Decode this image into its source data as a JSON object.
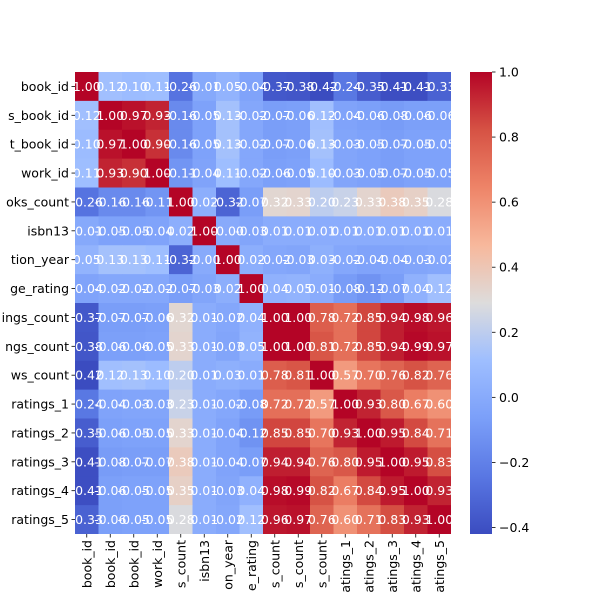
{
  "chart_data": {
    "type": "heatmap",
    "title": "",
    "xlabel": "",
    "ylabel": "",
    "row_labels": [
      "book_id",
      "s_book_id",
      "t_book_id",
      "work_id",
      "oks_count",
      "isbn13",
      "tion_year",
      "ge_rating",
      "ings_count",
      "ngs_count",
      "ws_count",
      "ratings_1",
      "ratings_2",
      "ratings_3",
      "ratings_4",
      "ratings_5"
    ],
    "col_labels": [
      "book_id",
      "book_id",
      "book_id",
      "work_id",
      "s_count",
      "isbn13",
      "on_year",
      "e_rating",
      "s_count",
      "s_count",
      "s_count",
      "atings_1",
      "atings_2",
      "atings_3",
      "atings_4",
      "atings_5"
    ],
    "values": [
      [
        1.0,
        0.12,
        0.1,
        0.11,
        -0.26,
        -0.01,
        0.05,
        -0.04,
        -0.37,
        -0.38,
        -0.42,
        -0.24,
        -0.35,
        -0.41,
        -0.41,
        -0.33
      ],
      [
        0.12,
        1.0,
        0.97,
        0.93,
        -0.16,
        -0.05,
        0.13,
        -0.02,
        -0.07,
        -0.06,
        0.12,
        -0.04,
        -0.06,
        -0.08,
        -0.06,
        -0.06
      ],
      [
        0.1,
        0.97,
        1.0,
        0.9,
        -0.16,
        -0.05,
        0.13,
        -0.02,
        -0.07,
        -0.06,
        0.13,
        -0.03,
        -0.05,
        -0.07,
        -0.05,
        -0.05
      ],
      [
        0.11,
        0.93,
        0.9,
        1.0,
        -0.11,
        -0.04,
        0.11,
        -0.02,
        -0.06,
        -0.05,
        0.1,
        -0.03,
        -0.05,
        -0.07,
        -0.05,
        -0.05
      ],
      [
        -0.26,
        -0.16,
        -0.16,
        -0.11,
        1.0,
        0.02,
        -0.32,
        -0.07,
        0.32,
        0.33,
        0.2,
        0.23,
        0.33,
        0.38,
        0.35,
        0.28
      ],
      [
        -0.01,
        -0.05,
        -0.05,
        -0.04,
        0.02,
        1.0,
        -0.0,
        -0.03,
        0.01,
        0.01,
        0.01,
        0.01,
        0.01,
        0.01,
        0.01,
        0.01
      ],
      [
        0.05,
        0.13,
        0.13,
        0.11,
        -0.32,
        -0.0,
        1.0,
        0.02,
        -0.02,
        -0.03,
        0.03,
        -0.02,
        -0.04,
        -0.04,
        -0.03,
        -0.02
      ],
      [
        -0.04,
        -0.02,
        -0.02,
        -0.02,
        -0.07,
        -0.03,
        0.02,
        1.0,
        0.04,
        0.05,
        0.01,
        -0.08,
        -0.12,
        -0.07,
        0.04,
        0.12
      ],
      [
        -0.37,
        -0.07,
        -0.07,
        -0.06,
        0.32,
        0.01,
        -0.02,
        0.04,
        1.0,
        1.0,
        0.78,
        0.72,
        0.85,
        0.94,
        0.98,
        0.96
      ],
      [
        -0.38,
        -0.06,
        -0.06,
        -0.05,
        0.33,
        0.01,
        -0.03,
        0.05,
        1.0,
        1.0,
        0.81,
        0.72,
        0.85,
        0.94,
        0.99,
        0.97
      ],
      [
        -0.42,
        0.12,
        0.13,
        0.1,
        0.2,
        0.01,
        0.03,
        0.01,
        0.78,
        0.81,
        1.0,
        0.57,
        0.7,
        0.76,
        0.82,
        0.76
      ],
      [
        -0.24,
        -0.04,
        -0.03,
        -0.03,
        0.23,
        0.01,
        -0.02,
        -0.08,
        0.72,
        0.72,
        0.57,
        1.0,
        0.93,
        0.8,
        0.67,
        0.6
      ],
      [
        -0.35,
        -0.06,
        -0.05,
        -0.05,
        0.33,
        0.01,
        -0.04,
        -0.12,
        0.85,
        0.85,
        0.7,
        0.93,
        1.0,
        0.95,
        0.84,
        0.71
      ],
      [
        -0.41,
        -0.08,
        -0.07,
        -0.07,
        0.38,
        0.01,
        -0.04,
        -0.07,
        0.94,
        0.94,
        0.76,
        0.8,
        0.95,
        1.0,
        0.95,
        0.83
      ],
      [
        -0.41,
        -0.06,
        -0.05,
        -0.05,
        0.35,
        0.01,
        -0.03,
        0.04,
        0.98,
        0.99,
        0.82,
        0.67,
        0.84,
        0.95,
        1.0,
        0.93
      ],
      [
        -0.33,
        -0.06,
        -0.05,
        -0.05,
        0.28,
        0.01,
        -0.02,
        0.12,
        0.96,
        0.97,
        0.76,
        0.6,
        0.71,
        0.83,
        0.93,
        1.0
      ]
    ],
    "value_labels": [
      [
        "1.00",
        "0.12",
        "0.10",
        "0.11",
        "-0.26",
        "-0.01",
        "0.05",
        "-0.04",
        "-0.37",
        "-0.38",
        "-0.42",
        "-0.24",
        "-0.35",
        "-0.41",
        "-0.41",
        "-0.33"
      ],
      [
        "0.12",
        "1.00",
        "0.97",
        "0.93",
        "-0.16",
        "-0.05",
        "0.13",
        "-0.02",
        "-0.07",
        "-0.06",
        "0.12",
        "-0.04",
        "-0.06",
        "-0.08",
        "-0.06",
        "-0.06"
      ],
      [
        "0.10",
        "0.97",
        "1.00",
        "0.90",
        "-0.16",
        "-0.05",
        "0.13",
        "-0.02",
        "-0.07",
        "-0.06",
        "0.13",
        "-0.03",
        "-0.05",
        "-0.07",
        "-0.05",
        "-0.05"
      ],
      [
        "0.11",
        "0.93",
        "0.90",
        "1.00",
        "-0.11",
        "-0.04",
        "0.11",
        "-0.02",
        "-0.06",
        "-0.05",
        "0.10",
        "-0.03",
        "-0.05",
        "-0.07",
        "-0.05",
        "-0.05"
      ],
      [
        "-0.26",
        "-0.16",
        "-0.16",
        "-0.11",
        "1.00",
        "0.02",
        "-0.32",
        "-0.07",
        "0.32",
        "0.33",
        "0.20",
        "0.23",
        "0.33",
        "0.38",
        "0.35",
        "0.28"
      ],
      [
        "-0.01",
        "-0.05",
        "-0.05",
        "-0.04",
        "0.02",
        "1.00",
        "-0.00",
        "-0.03",
        "0.01",
        "0.01",
        "0.01",
        "0.01",
        "0.01",
        "0.01",
        "0.01",
        "0.01"
      ],
      [
        "0.05",
        "0.13",
        "0.13",
        "0.11",
        "-0.32",
        "-0.00",
        "1.00",
        "0.02",
        "-0.02",
        "-0.03",
        "0.03",
        "-0.02",
        "-0.04",
        "-0.04",
        "-0.03",
        "-0.02"
      ],
      [
        "-0.04",
        "-0.02",
        "-0.02",
        "-0.02",
        "-0.07",
        "-0.03",
        "0.02",
        "1.00",
        "0.04",
        "0.05",
        "0.01",
        "-0.08",
        "-0.12",
        "-0.07",
        "0.04",
        "0.12"
      ],
      [
        "-0.37",
        "-0.07",
        "-0.07",
        "-0.06",
        "0.32",
        "0.01",
        "-0.02",
        "0.04",
        "1.00",
        "1.00",
        "0.78",
        "0.72",
        "0.85",
        "0.94",
        "0.98",
        "0.96"
      ],
      [
        "-0.38",
        "-0.06",
        "-0.06",
        "-0.05",
        "0.33",
        "0.01",
        "-0.03",
        "0.05",
        "1.00",
        "1.00",
        "0.81",
        "0.72",
        "0.85",
        "0.94",
        "0.99",
        "0.97"
      ],
      [
        "-0.42",
        "0.12",
        "0.13",
        "0.10",
        "0.20",
        "0.01",
        "0.03",
        "0.01",
        "0.78",
        "0.81",
        "1.00",
        "0.57",
        "0.70",
        "0.76",
        "0.82",
        "0.76"
      ],
      [
        "-0.24",
        "-0.04",
        "-0.03",
        "-0.03",
        "0.23",
        "0.01",
        "-0.02",
        "-0.08",
        "0.72",
        "0.72",
        "0.57",
        "1.00",
        "0.93",
        "0.80",
        "0.67",
        "0.60"
      ],
      [
        "-0.35",
        "-0.06",
        "-0.05",
        "-0.05",
        "0.33",
        "0.01",
        "-0.04",
        "-0.12",
        "0.85",
        "0.85",
        "0.70",
        "0.93",
        "1.00",
        "0.95",
        "0.84",
        "0.71"
      ],
      [
        "-0.41",
        "-0.08",
        "-0.07",
        "-0.07",
        "0.38",
        "0.01",
        "-0.04",
        "-0.07",
        "0.94",
        "0.94",
        "0.76",
        "0.80",
        "0.95",
        "1.00",
        "0.95",
        "0.83"
      ],
      [
        "-0.41",
        "-0.06",
        "-0.05",
        "-0.05",
        "0.35",
        "0.01",
        "-0.03",
        "0.04",
        "0.98",
        "0.99",
        "0.82",
        "0.67",
        "0.84",
        "0.95",
        "1.00",
        "0.93"
      ],
      [
        "-0.33",
        "-0.06",
        "-0.05",
        "-0.05",
        "0.28",
        "0.01",
        "-0.02",
        "0.12",
        "0.96",
        "0.97",
        "0.76",
        "0.60",
        "0.71",
        "0.83",
        "0.93",
        "1.00"
      ]
    ],
    "colormap": "coolwarm",
    "vmin": -0.42,
    "vmax": 1.0,
    "colorbar": {
      "ticks": [
        1.0,
        0.8,
        0.6,
        0.4,
        0.2,
        0.0,
        -0.2,
        -0.4
      ],
      "tick_labels": [
        "1.0",
        "0.8",
        "0.6",
        "0.4",
        "0.2",
        "0.0",
        "−0.2",
        "−0.4"
      ],
      "position": "right"
    },
    "colormap_stops": [
      [
        0.0,
        "#3b4cc0"
      ],
      [
        0.125,
        "#5977e3"
      ],
      [
        0.25,
        "#7b9ff9"
      ],
      [
        0.375,
        "#9ebeff"
      ],
      [
        0.5,
        "#dddcdc"
      ],
      [
        0.625,
        "#f7b89c"
      ],
      [
        0.75,
        "#ee8468"
      ],
      [
        0.875,
        "#d65244"
      ],
      [
        1.0,
        "#b40426"
      ]
    ],
    "annotation_color": "#ffffff",
    "grid": false
  }
}
